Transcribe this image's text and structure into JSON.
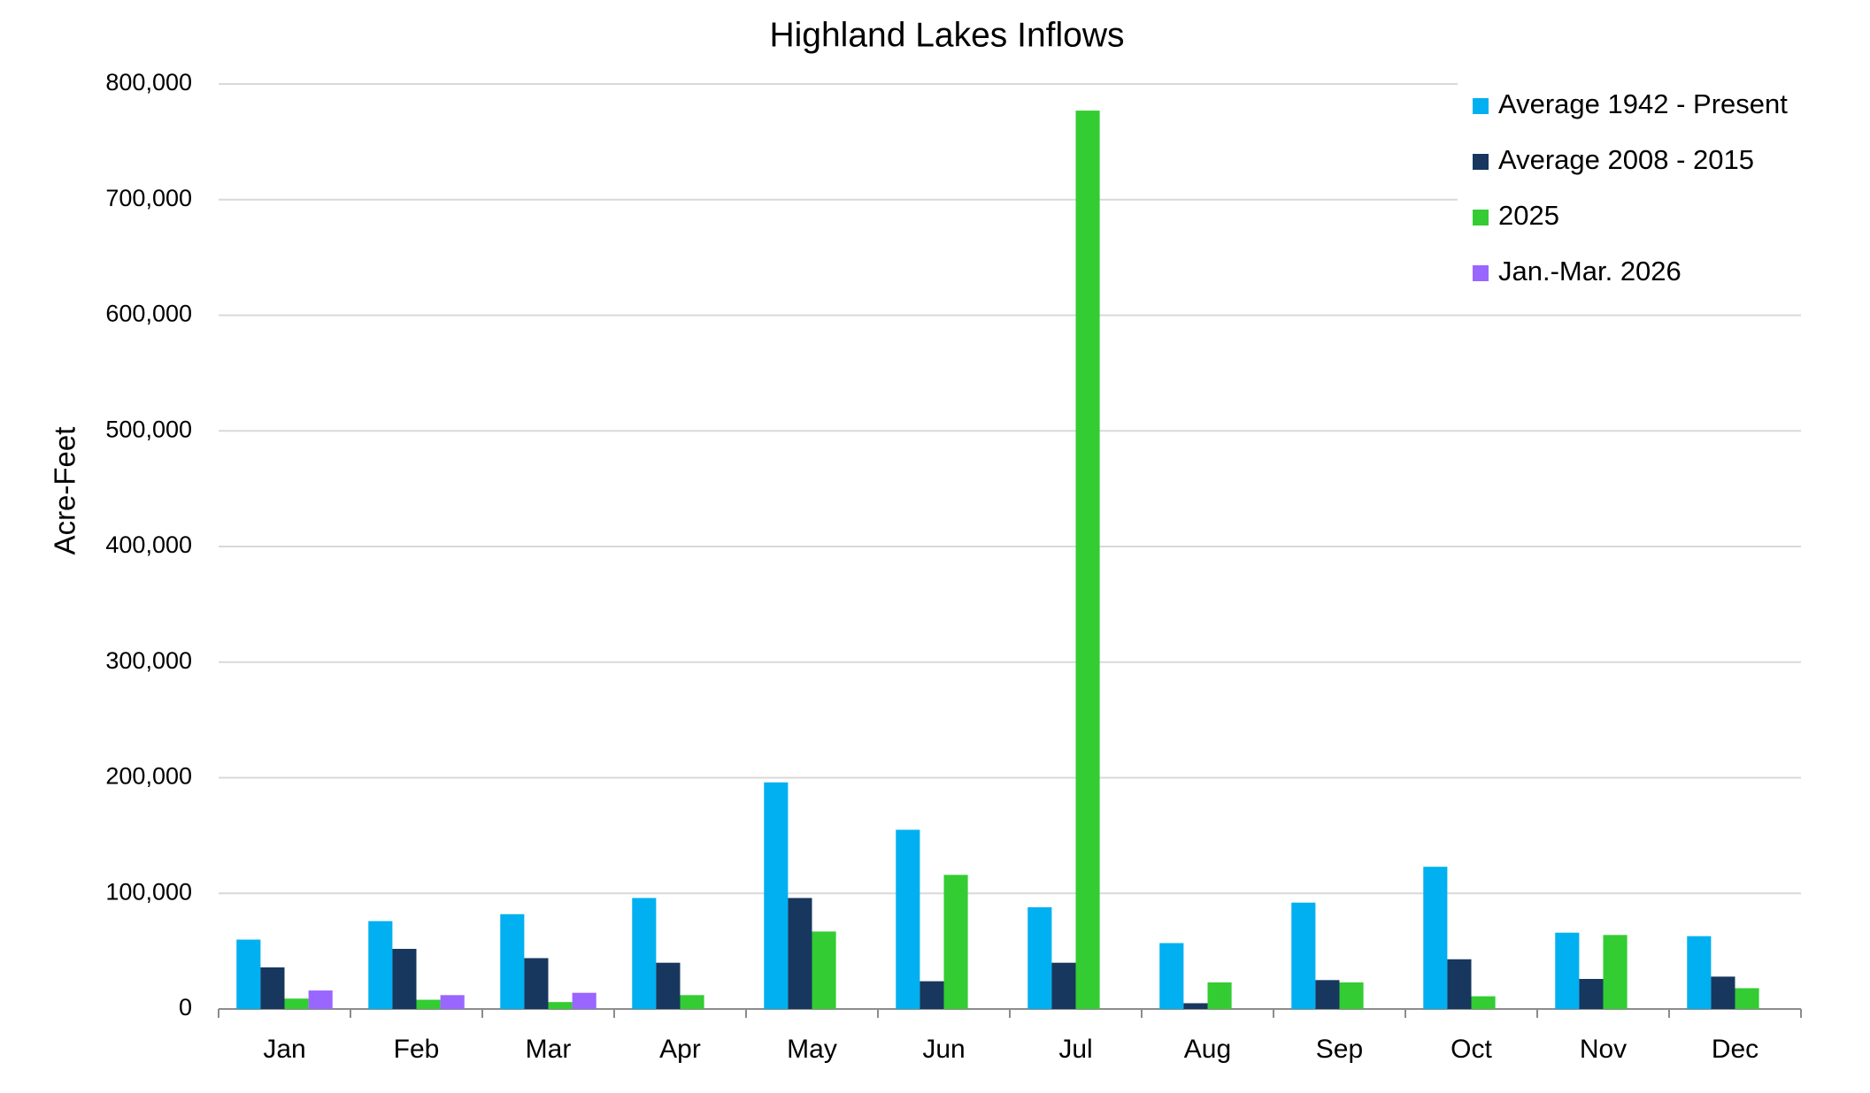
{
  "chart_data": {
    "type": "bar",
    "title": "Highland Lakes Inflows",
    "y_label": "Acre-Feet",
    "categories": [
      "Jan",
      "Feb",
      "Mar",
      "Apr",
      "May",
      "Jun",
      "Jul",
      "Aug",
      "Sep",
      "Oct",
      "Nov",
      "Dec"
    ],
    "series": [
      {
        "name": "Average 1942 - Present",
        "color": "#00b0f0",
        "values": [
          60000,
          76000,
          82000,
          96000,
          196000,
          155000,
          88000,
          57000,
          92000,
          123000,
          66000,
          63000
        ]
      },
      {
        "name": "Average 2008 - 2015",
        "color": "#17375e",
        "values": [
          36000,
          52000,
          44000,
          40000,
          96000,
          24000,
          40000,
          5000,
          25000,
          43000,
          26000,
          28000
        ]
      },
      {
        "name": "2025",
        "color": "#33cc33",
        "values": [
          9000,
          8000,
          6000,
          12000,
          67000,
          116000,
          777000,
          23000,
          23000,
          11000,
          64000,
          18000
        ]
      },
      {
        "name": "Jan.-Mar. 2026",
        "color": "#9966ff",
        "values": [
          16000,
          12000,
          14000,
          null,
          null,
          null,
          null,
          null,
          null,
          null,
          null,
          null
        ]
      }
    ],
    "ylim": [
      0,
      800000
    ],
    "yticks": [
      0,
      {
        "value": 100000,
        "label": "100,000"
      },
      {
        "value": 200000,
        "label": "200,000"
      },
      {
        "value": 300000,
        "label": "300,000"
      },
      {
        "value": 400000,
        "label": "400,000"
      },
      {
        "value": 500000,
        "label": "500,000"
      },
      {
        "value": 600000,
        "label": "600,000"
      },
      {
        "value": 700000,
        "label": "700,000"
      },
      {
        "value": 800000,
        "label": "800,000"
      }
    ],
    "grid": true,
    "legend": "top-right"
  }
}
